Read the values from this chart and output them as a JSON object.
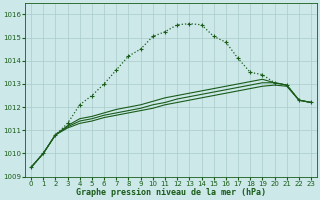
{
  "title": "Graphe pression niveau de la mer (hPa)",
  "xlabel": "Graphe pression niveau de la mer (hPa)",
  "background_color": "#cce8e8",
  "grid_color": "#aacccc",
  "line_color": "#1a5c1a",
  "ylim": [
    1009.0,
    1016.5
  ],
  "xlim": [
    -0.5,
    23.5
  ],
  "yticks": [
    1009,
    1010,
    1011,
    1012,
    1013,
    1014,
    1015,
    1016
  ],
  "xticks": [
    0,
    1,
    2,
    3,
    4,
    5,
    6,
    7,
    8,
    9,
    10,
    11,
    12,
    13,
    14,
    15,
    16,
    17,
    18,
    19,
    20,
    21,
    22,
    23
  ],
  "dotted_series": {
    "x": [
      0,
      1,
      2,
      3,
      4,
      5,
      6,
      7,
      8,
      9,
      10,
      11,
      12,
      13,
      14,
      15,
      16,
      17,
      18,
      19,
      20,
      21,
      22,
      23
    ],
    "y": [
      1009.4,
      1010.0,
      1010.8,
      1011.3,
      1012.1,
      1012.5,
      1013.0,
      1013.6,
      1014.2,
      1014.5,
      1015.05,
      1015.25,
      1015.55,
      1015.6,
      1015.55,
      1015.05,
      1014.8,
      1014.1,
      1013.5,
      1013.4,
      1013.05,
      1012.95,
      1012.3,
      1012.2
    ]
  },
  "solid_series": [
    {
      "x": [
        0,
        1,
        2,
        3,
        4,
        5,
        6,
        7,
        8,
        9,
        10,
        11,
        12,
        13,
        14,
        15,
        16,
        17,
        18,
        19,
        20,
        21,
        22,
        23
      ],
      "y": [
        1009.4,
        1010.0,
        1010.8,
        1011.1,
        1011.3,
        1011.4,
        1011.55,
        1011.65,
        1011.75,
        1011.85,
        1011.95,
        1012.1,
        1012.2,
        1012.3,
        1012.4,
        1012.5,
        1012.6,
        1012.7,
        1012.8,
        1012.9,
        1012.95,
        1012.9,
        1012.3,
        1012.2
      ]
    },
    {
      "x": [
        0,
        1,
        2,
        3,
        4,
        5,
        6,
        7,
        8,
        9,
        10,
        11,
        12,
        13,
        14,
        15,
        16,
        17,
        18,
        19,
        20,
        21,
        22,
        23
      ],
      "y": [
        1009.4,
        1010.0,
        1010.8,
        1011.15,
        1011.4,
        1011.5,
        1011.65,
        1011.75,
        1011.85,
        1011.95,
        1012.1,
        1012.2,
        1012.35,
        1012.45,
        1012.55,
        1012.65,
        1012.75,
        1012.85,
        1012.95,
        1013.05,
        1013.05,
        1012.95,
        1012.3,
        1012.2
      ]
    },
    {
      "x": [
        0,
        1,
        2,
        3,
        4,
        5,
        6,
        7,
        8,
        9,
        10,
        11,
        12,
        13,
        14,
        15,
        16,
        17,
        18,
        19,
        20,
        21,
        22,
        23
      ],
      "y": [
        1009.4,
        1010.0,
        1010.8,
        1011.2,
        1011.5,
        1011.6,
        1011.75,
        1011.9,
        1012.0,
        1012.1,
        1012.25,
        1012.4,
        1012.5,
        1012.6,
        1012.7,
        1012.8,
        1012.9,
        1013.0,
        1013.1,
        1013.2,
        1013.05,
        1012.95,
        1012.3,
        1012.2
      ]
    }
  ]
}
